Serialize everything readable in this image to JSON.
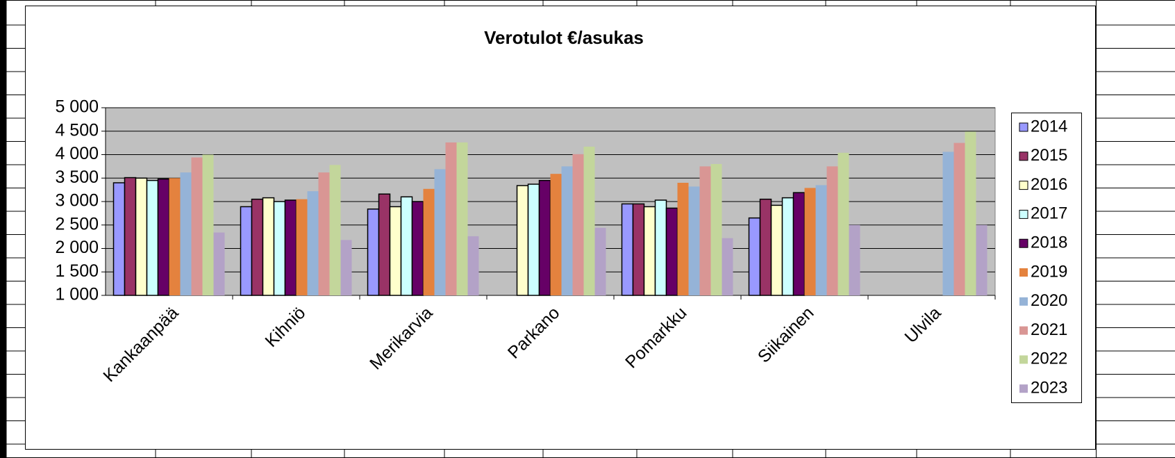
{
  "chart_data": {
    "type": "bar",
    "title": "Verotulot €/asukas",
    "categories": [
      "Kankaanpää",
      "Kihniö",
      "Merikarvia",
      "Parkano",
      "Pomarkku",
      "Siikainen",
      "Ulvila"
    ],
    "series": [
      {
        "name": "2014",
        "color": "#9999ff",
        "values": [
          3400,
          2890,
          2840,
          null,
          2950,
          2650,
          null
        ]
      },
      {
        "name": "2015",
        "color": "#993366",
        "values": [
          3510,
          3050,
          3160,
          null,
          2950,
          3050,
          null
        ]
      },
      {
        "name": "2016",
        "color": "#ffffcc",
        "values": [
          3500,
          3080,
          2890,
          3340,
          2890,
          2920,
          null
        ]
      },
      {
        "name": "2017",
        "color": "#ccffff",
        "values": [
          3450,
          3000,
          3100,
          3370,
          3030,
          3080,
          null
        ]
      },
      {
        "name": "2018",
        "color": "#660066",
        "values": [
          3480,
          3030,
          3000,
          3450,
          2860,
          3190,
          null
        ]
      },
      {
        "name": "2019",
        "color": "#e4823e",
        "values": [
          3500,
          3050,
          3270,
          3590,
          3400,
          3290,
          null
        ]
      },
      {
        "name": "2020",
        "color": "#95b3d7",
        "values": [
          3620,
          3220,
          3690,
          3750,
          3320,
          3350,
          4060
        ]
      },
      {
        "name": "2021",
        "color": "#d99694",
        "values": [
          3940,
          3620,
          4260,
          4010,
          3750,
          3750,
          4250
        ]
      },
      {
        "name": "2022",
        "color": "#c3d69b",
        "values": [
          4000,
          3780,
          4260,
          4170,
          3800,
          4040,
          4490
        ]
      },
      {
        "name": "2023",
        "color": "#b3a2c7",
        "values": [
          2340,
          2180,
          2260,
          2440,
          2220,
          2500,
          2500
        ]
      }
    ],
    "ylim": [
      1000,
      5000
    ],
    "yticks": [
      {
        "value": 1000,
        "label": "1 000"
      },
      {
        "value": 1500,
        "label": "1 500"
      },
      {
        "value": 2000,
        "label": "2 000"
      },
      {
        "value": 2500,
        "label": "2 500"
      },
      {
        "value": 3000,
        "label": "3 000"
      },
      {
        "value": 3500,
        "label": "3 500"
      },
      {
        "value": 4000,
        "label": "4 000"
      },
      {
        "value": 4500,
        "label": "4 500"
      },
      {
        "value": 5000,
        "label": "5 000"
      }
    ],
    "grid": true,
    "legend": "right"
  }
}
